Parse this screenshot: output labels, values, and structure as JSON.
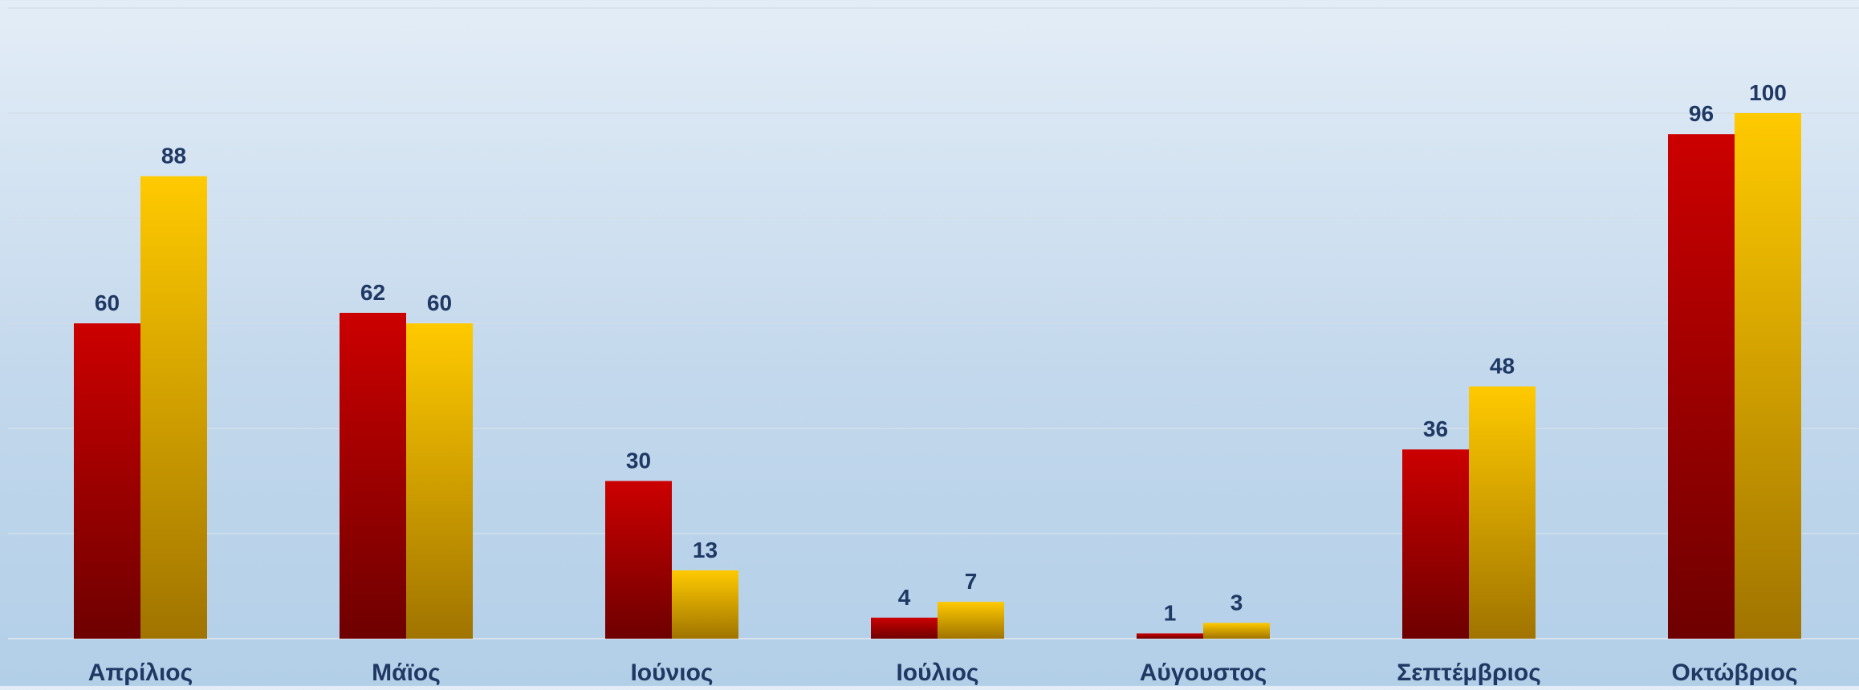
{
  "chart_data": {
    "type": "bar",
    "categories": [
      "Απρίλιος",
      "Μάϊος",
      "Ιούνιος",
      "Ιούλιος",
      "Αύγουστος",
      "Σεπτέμβριος",
      "Οκτώβριος"
    ],
    "series": [
      {
        "values": [
          60,
          62,
          30,
          4,
          1,
          36,
          96
        ],
        "color": "#c00000"
      },
      {
        "values": [
          88,
          60,
          13,
          7,
          3,
          48,
          100
        ],
        "color": "#ffc000"
      }
    ],
    "ylim": [
      0,
      120
    ],
    "gridline_step": 20,
    "grid": true,
    "legend": "none",
    "title": "",
    "xlabel": "",
    "ylabel": "",
    "label_color": "#1f3864"
  }
}
